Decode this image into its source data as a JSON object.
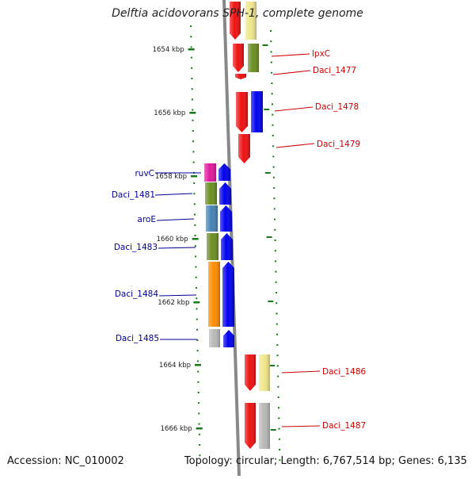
{
  "title": "Delftia acidovorans SPH-1, complete genome",
  "accession": "Accession: NC_010002",
  "topology": "Topology: circular; Length: 6,767,514 bp; Genes: 6,135",
  "colors": {
    "backbone": "#888888",
    "tick": "#1a7a1a",
    "label_right": "#cc0000",
    "label_left": "#000099",
    "red": "#ee1111",
    "blue": "#0000ee",
    "olive": "#6b8e23",
    "khaki": "#f0e68c",
    "magenta": "#e0189c",
    "steelblue": "#4682b4",
    "orange": "#ff8c00",
    "gray": "#b8b8b8"
  },
  "ticks": [
    {
      "label": "1654 kbp"
    },
    {
      "label": "1656 kbp"
    },
    {
      "label": "1658 kbp"
    },
    {
      "label": "1660 kbp"
    },
    {
      "label": "1662 kbp"
    },
    {
      "label": "1664 kbp"
    },
    {
      "label": "1666 kbp"
    }
  ],
  "gene_labels_right": [
    "lpxC",
    "Daci_1477",
    "Daci_1478",
    "Daci_1479",
    "Daci_1486",
    "Daci_1487"
  ],
  "gene_labels_left": [
    "ruvC",
    "Daci_1481",
    "aroE",
    "Daci_1483",
    "Daci_1484",
    "Daci_1485"
  ]
}
